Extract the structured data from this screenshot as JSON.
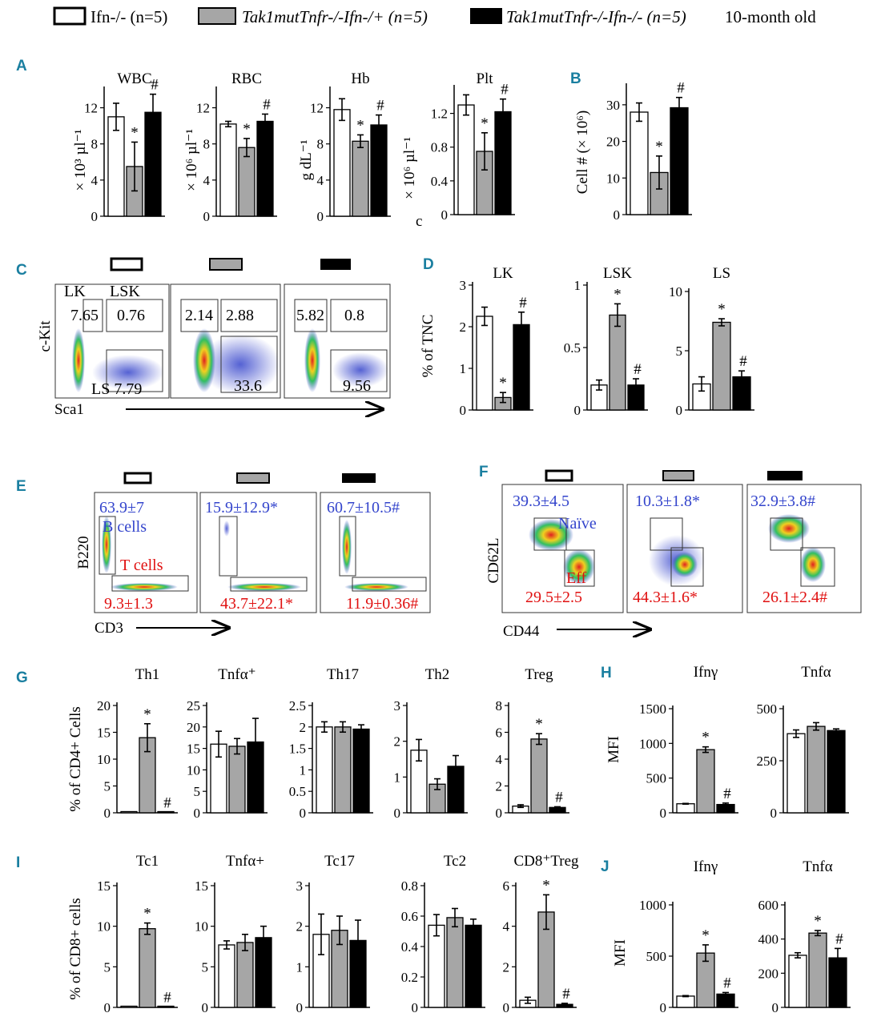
{
  "legend": {
    "items": [
      {
        "label": "Ifn-/- (n=5)",
        "fill": "#ffffff"
      },
      {
        "label": "Tak1mutTnfr-/-Ifn-/+ (n=5)",
        "fill": "#a6a6a6"
      },
      {
        "label": "Tak1mutTnfr-/-Ifn-/- (n=5)",
        "fill": "#000000"
      }
    ],
    "age": "10-month old"
  },
  "colors": {
    "group1": "#ffffff",
    "group2": "#a6a6a6",
    "group3": "#000000",
    "blue": "#3344cc",
    "red": "#e01010",
    "panel_letter": "#1a7fa0"
  },
  "panel_letters": [
    "A",
    "B",
    "C",
    "D",
    "E",
    "F",
    "G",
    "H",
    "I",
    "J"
  ],
  "axis_titles": {
    "a_wbc": "× 10³ µl⁻¹",
    "a_rbc": "× 10⁶ µl⁻¹",
    "a_hb": "g dL⁻¹",
    "a_plt": "× 10⁶ µl⁻¹",
    "b": "Cell # (× 10⁶)",
    "d": "% of TNC",
    "g": "% of CD4+ Cells",
    "h": "MFI",
    "i": "% of CD8+ cells",
    "j": "MFI"
  },
  "chart_data": [
    {
      "id": "A-WBC",
      "type": "bar",
      "title": "WBC",
      "categories": [
        "Ifn-/-",
        "Tak1mutTnfr-/-Ifn-/+",
        "Tak1mutTnfr-/-Ifn-/-"
      ],
      "values": [
        11,
        5.5,
        11.5
      ],
      "errors": [
        1.5,
        2.7,
        2
      ],
      "marks": [
        "",
        "*",
        "#"
      ],
      "ylim": [
        0,
        14
      ],
      "yticks": [
        0,
        4,
        8,
        12
      ]
    },
    {
      "id": "A-RBC",
      "type": "bar",
      "title": "RBC",
      "categories": [
        "Ifn-/-",
        "Tak1mutTnfr-/-Ifn-/+",
        "Tak1mutTnfr-/-Ifn-/-"
      ],
      "values": [
        10.2,
        7.6,
        10.5
      ],
      "errors": [
        0.3,
        1,
        0.8
      ],
      "marks": [
        "",
        "*",
        "#"
      ],
      "ylim": [
        0,
        14
      ],
      "yticks": [
        0,
        4,
        8,
        12
      ]
    },
    {
      "id": "A-Hb",
      "type": "bar",
      "title": "Hb",
      "categories": [
        "Ifn-/-",
        "Tak1mutTnfr-/-Ifn-/+",
        "Tak1mutTnfr-/-Ifn-/-"
      ],
      "values": [
        11.8,
        8.3,
        10.1
      ],
      "errors": [
        1.2,
        0.7,
        1.1
      ],
      "marks": [
        "",
        "*",
        "#"
      ],
      "ylim": [
        0,
        14
      ],
      "yticks": [
        0,
        4,
        8,
        12
      ]
    },
    {
      "id": "A-Plt",
      "type": "bar",
      "title": "Plt",
      "categories": [
        "Ifn-/-",
        "Tak1mutTnfr-/-Ifn-/+",
        "Tak1mutTnfr-/-Ifn-/-"
      ],
      "values": [
        1.3,
        0.75,
        1.22
      ],
      "errors": [
        0.12,
        0.22,
        0.15
      ],
      "marks": [
        "",
        "*",
        "#"
      ],
      "ylim": [
        0,
        1.5
      ],
      "yticks": [
        0,
        0.4,
        0.8,
        1.2
      ],
      "corner_label": "c"
    },
    {
      "id": "B",
      "type": "bar",
      "title": "",
      "categories": [
        "Ifn-/-",
        "Tak1mutTnfr-/-Ifn-/+",
        "Tak1mutTnfr-/-Ifn-/-"
      ],
      "values": [
        28,
        11.5,
        29.2
      ],
      "errors": [
        2.5,
        4.5,
        2.8
      ],
      "marks": [
        "",
        "*",
        "#"
      ],
      "ylim": [
        0,
        35
      ],
      "yticks": [
        0,
        10,
        20,
        30
      ]
    },
    {
      "id": "D-LK",
      "type": "bar",
      "title": "LK",
      "categories": [
        "Ifn-/-",
        "Tak1mutTnfr-/-Ifn-/+",
        "Tak1mutTnfr-/-Ifn-/-"
      ],
      "values": [
        2.25,
        0.3,
        2.05
      ],
      "errors": [
        0.22,
        0.12,
        0.3
      ],
      "marks": [
        "",
        "*",
        "#"
      ],
      "ylim": [
        0,
        3
      ],
      "yticks": [
        0,
        1,
        2,
        3
      ]
    },
    {
      "id": "D-LSK",
      "type": "bar",
      "title": "LSK",
      "categories": [
        "Ifn-/-",
        "Tak1mutTnfr-/-Ifn-/+",
        "Tak1mutTnfr-/-Ifn-/-"
      ],
      "values": [
        0.2,
        0.76,
        0.2
      ],
      "errors": [
        0.04,
        0.09,
        0.05
      ],
      "marks": [
        "",
        "*",
        "#"
      ],
      "ylim": [
        0,
        1
      ],
      "yticks": [
        0,
        0.5,
        1
      ]
    },
    {
      "id": "D-LS",
      "type": "bar",
      "title": "LS",
      "categories": [
        "Ifn-/-",
        "Tak1mutTnfr-/-Ifn-/+",
        "Tak1mutTnfr-/-Ifn-/-"
      ],
      "values": [
        2.2,
        7.4,
        2.8
      ],
      "errors": [
        0.6,
        0.3,
        0.5
      ],
      "marks": [
        "",
        "*",
        "#"
      ],
      "ylim": [
        0,
        10
      ],
      "yticks": [
        0,
        5,
        10
      ]
    },
    {
      "id": "G-Th1",
      "type": "bar",
      "title": "Th1",
      "categories": [
        "Ifn-/-",
        "Tak1mutTnfr-/-Ifn-/+",
        "Tak1mutTnfr-/-Ifn-/-"
      ],
      "values": [
        0.1,
        14,
        0.1
      ],
      "errors": [
        0,
        2.6,
        0
      ],
      "marks": [
        "",
        "*",
        "#"
      ],
      "ylim": [
        0,
        20
      ],
      "yticks": [
        0,
        5,
        10,
        15,
        20
      ]
    },
    {
      "id": "G-Tnfa",
      "type": "bar",
      "title": "Tnfα⁺",
      "categories": [
        "Ifn-/-",
        "Tak1mutTnfr-/-Ifn-/+",
        "Tak1mutTnfr-/-Ifn-/-"
      ],
      "values": [
        16,
        15.5,
        16.5
      ],
      "errors": [
        3,
        1.8,
        5.5
      ],
      "marks": [
        "",
        "",
        ""
      ],
      "ylim": [
        0,
        25
      ],
      "yticks": [
        0,
        5,
        10,
        15,
        20,
        25
      ]
    },
    {
      "id": "G-Th17",
      "type": "bar",
      "title": "Th17",
      "categories": [
        "Ifn-/-",
        "Tak1mutTnfr-/-Ifn-/+",
        "Tak1mutTnfr-/-Ifn-/-"
      ],
      "values": [
        2,
        2,
        1.95
      ],
      "errors": [
        0.12,
        0.12,
        0.1
      ],
      "marks": [
        "",
        "",
        ""
      ],
      "ylim": [
        0,
        2.5
      ],
      "yticks": [
        0,
        0.5,
        1,
        1.5,
        2,
        2.5
      ]
    },
    {
      "id": "G-Th2",
      "type": "bar",
      "title": "Th2",
      "categories": [
        "Ifn-/-",
        "Tak1mutTnfr-/-Ifn-/+",
        "Tak1mutTnfr-/-Ifn-/-"
      ],
      "values": [
        1.75,
        0.8,
        1.3
      ],
      "errors": [
        0.3,
        0.15,
        0.3
      ],
      "marks": [
        "",
        "",
        ""
      ],
      "ylim": [
        0,
        3
      ],
      "yticks": [
        0,
        1,
        2,
        3
      ]
    },
    {
      "id": "G-Treg",
      "type": "bar",
      "title": "Treg",
      "categories": [
        "Ifn-/-",
        "Tak1mutTnfr-/-Ifn-/+",
        "Tak1mutTnfr-/-Ifn-/-"
      ],
      "values": [
        0.5,
        5.5,
        0.4
      ],
      "errors": [
        0.1,
        0.4,
        0.05
      ],
      "marks": [
        "",
        "*",
        "#"
      ],
      "ylim": [
        0,
        8
      ],
      "yticks": [
        0,
        2,
        4,
        6,
        8
      ]
    },
    {
      "id": "H-Ifng",
      "type": "bar",
      "title": "Ifnγ",
      "categories": [
        "Ifn-/-",
        "Tak1mutTnfr-/-Ifn-/+",
        "Tak1mutTnfr-/-Ifn-/-"
      ],
      "values": [
        130,
        910,
        120
      ],
      "errors": [
        5,
        40,
        20
      ],
      "marks": [
        "",
        "*",
        "#"
      ],
      "ylim": [
        0,
        1500
      ],
      "yticks": [
        0,
        500,
        1000,
        1500
      ]
    },
    {
      "id": "H-Tnfa",
      "type": "bar",
      "title": "Tnfα",
      "categories": [
        "Ifn-/-",
        "Tak1mutTnfr-/-Ifn-/+",
        "Tak1mutTnfr-/-Ifn-/-"
      ],
      "values": [
        380,
        415,
        395
      ],
      "errors": [
        18,
        18,
        8
      ],
      "marks": [
        "",
        "",
        ""
      ],
      "ylim": [
        0,
        500
      ],
      "yticks": [
        0,
        250,
        500
      ]
    },
    {
      "id": "I-Tc1",
      "type": "bar",
      "title": "Tc1",
      "categories": [
        "Ifn-/-",
        "Tak1mutTnfr-/-Ifn-/+",
        "Tak1mutTnfr-/-Ifn-/-"
      ],
      "values": [
        0.05,
        9.7,
        0.05
      ],
      "errors": [
        0,
        0.7,
        0
      ],
      "marks": [
        "",
        "*",
        "#"
      ],
      "ylim": [
        0,
        15
      ],
      "yticks": [
        0,
        5,
        10,
        15
      ]
    },
    {
      "id": "I-Tnfa",
      "type": "bar",
      "title": "Tnfα+",
      "categories": [
        "Ifn-/-",
        "Tak1mutTnfr-/-Ifn-/+",
        "Tak1mutTnfr-/-Ifn-/-"
      ],
      "values": [
        7.7,
        8,
        8.6
      ],
      "errors": [
        0.5,
        1,
        1.4
      ],
      "marks": [
        "",
        "",
        ""
      ],
      "ylim": [
        0,
        15
      ],
      "yticks": [
        0,
        5,
        10,
        15
      ]
    },
    {
      "id": "I-Tc17",
      "type": "bar",
      "title": "Tc17",
      "categories": [
        "Ifn-/-",
        "Tak1mutTnfr-/-Ifn-/+",
        "Tak1mutTnfr-/-Ifn-/-"
      ],
      "values": [
        1.8,
        1.9,
        1.65
      ],
      "errors": [
        0.5,
        0.35,
        0.5
      ],
      "marks": [
        "",
        "",
        ""
      ],
      "ylim": [
        0,
        3
      ],
      "yticks": [
        0,
        1,
        2,
        3
      ]
    },
    {
      "id": "I-Tc2",
      "type": "bar",
      "title": "Tc2",
      "categories": [
        "Ifn-/-",
        "Tak1mutTnfr-/-Ifn-/+",
        "Tak1mutTnfr-/-Ifn-/-"
      ],
      "values": [
        0.54,
        0.59,
        0.54
      ],
      "errors": [
        0.07,
        0.06,
        0.04
      ],
      "marks": [
        "",
        "",
        ""
      ],
      "ylim": [
        0,
        0.8
      ],
      "yticks": [
        0,
        0.2,
        0.4,
        0.6,
        0.8
      ]
    },
    {
      "id": "I-CD8Treg",
      "type": "bar",
      "title": "CD8⁺Treg",
      "categories": [
        "Ifn-/-",
        "Tak1mutTnfr-/-Ifn-/+",
        "Tak1mutTnfr-/-Ifn-/-"
      ],
      "values": [
        0.35,
        4.7,
        0.15
      ],
      "errors": [
        0.15,
        0.85,
        0.05
      ],
      "marks": [
        "",
        "*",
        "#"
      ],
      "ylim": [
        0,
        6
      ],
      "yticks": [
        0,
        2,
        4,
        6
      ]
    },
    {
      "id": "J-Ifng",
      "type": "bar",
      "title": "Ifnγ",
      "categories": [
        "Ifn-/-",
        "Tak1mutTnfr-/-Ifn-/+",
        "Tak1mutTnfr-/-Ifn-/-"
      ],
      "values": [
        110,
        530,
        130
      ],
      "errors": [
        5,
        80,
        15
      ],
      "marks": [
        "",
        "*",
        "#"
      ],
      "ylim": [
        0,
        1000
      ],
      "yticks": [
        0,
        500,
        1000
      ]
    },
    {
      "id": "J-Tnfa",
      "type": "bar",
      "title": "Tnfα",
      "categories": [
        "Ifn-/-",
        "Tak1mutTnfr-/-Ifn-/+",
        "Tak1mutTnfr-/-Ifn-/-"
      ],
      "values": [
        305,
        435,
        290
      ],
      "errors": [
        15,
        15,
        55
      ],
      "marks": [
        "",
        "*",
        "#"
      ],
      "ylim": [
        0,
        600
      ],
      "yticks": [
        0,
        200,
        400,
        600
      ]
    }
  ],
  "flow": {
    "c": {
      "y_axis": "c-Kit",
      "x_axis": "Sca1",
      "gate_names": [
        "LK",
        "LSK"
      ],
      "plots": [
        {
          "lk": "7.65",
          "lsk": "0.76",
          "ls": "LS 7.79"
        },
        {
          "lk": "2.14",
          "lsk": "2.88",
          "ls": "33.6"
        },
        {
          "lk": "5.82",
          "lsk": "0.8",
          "ls": "9.56"
        }
      ]
    },
    "e": {
      "y_axis": "B220",
      "x_axis": "CD3",
      "b_label": "B cells",
      "t_label": "T cells",
      "plots": [
        {
          "b": "63.9±7",
          "t": "9.3±1.3"
        },
        {
          "b": "15.9±12.9*",
          "t": "43.7±22.1*"
        },
        {
          "b": "60.7±10.5#",
          "t": "11.9±0.36#"
        }
      ]
    },
    "f": {
      "y_axis": "CD62L",
      "x_axis": "CD44",
      "naive_label": "Naïve",
      "eff_label": "Eff",
      "plots": [
        {
          "naive": "39.3±4.5",
          "eff": "29.5±2.5"
        },
        {
          "naive": "10.3±1.8*",
          "eff": "44.3±1.6*"
        },
        {
          "naive": "32.9±3.8#",
          "eff": "26.1±2.4#"
        }
      ]
    }
  }
}
